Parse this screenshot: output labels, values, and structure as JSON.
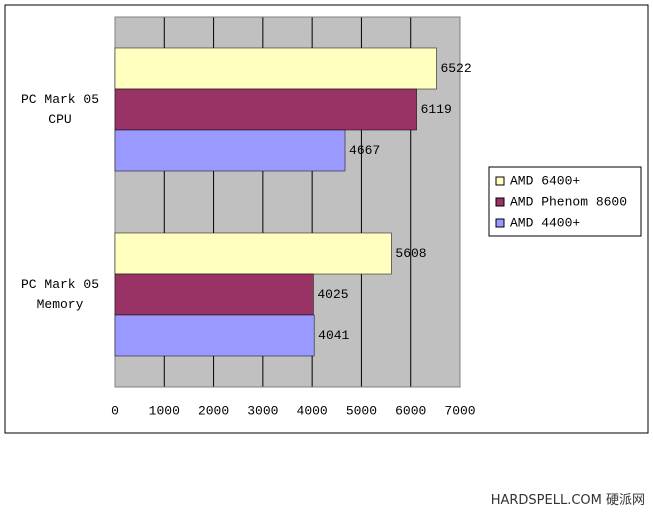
{
  "chart_data": {
    "type": "bar",
    "orientation": "horizontal",
    "categories": [
      "PC Mark 05 CPU",
      "PC Mark 05 Memory"
    ],
    "series": [
      {
        "name": "AMD 6400+",
        "color": "#ffffc0",
        "values": [
          6522,
          5608
        ]
      },
      {
        "name": "AMD Phenom 8600",
        "color": "#993366",
        "values": [
          6119,
          4025
        ]
      },
      {
        "name": "AMD 4400+",
        "color": "#9999ff",
        "values": [
          4667,
          4041
        ]
      }
    ],
    "xlim": [
      0,
      7000
    ],
    "xticks": [
      0,
      1000,
      2000,
      3000,
      4000,
      5000,
      6000,
      7000
    ],
    "grid": true,
    "plot_background": "#c0c0c0",
    "legend": "right"
  },
  "watermark": "HARDSPELL.COM 硬派网"
}
